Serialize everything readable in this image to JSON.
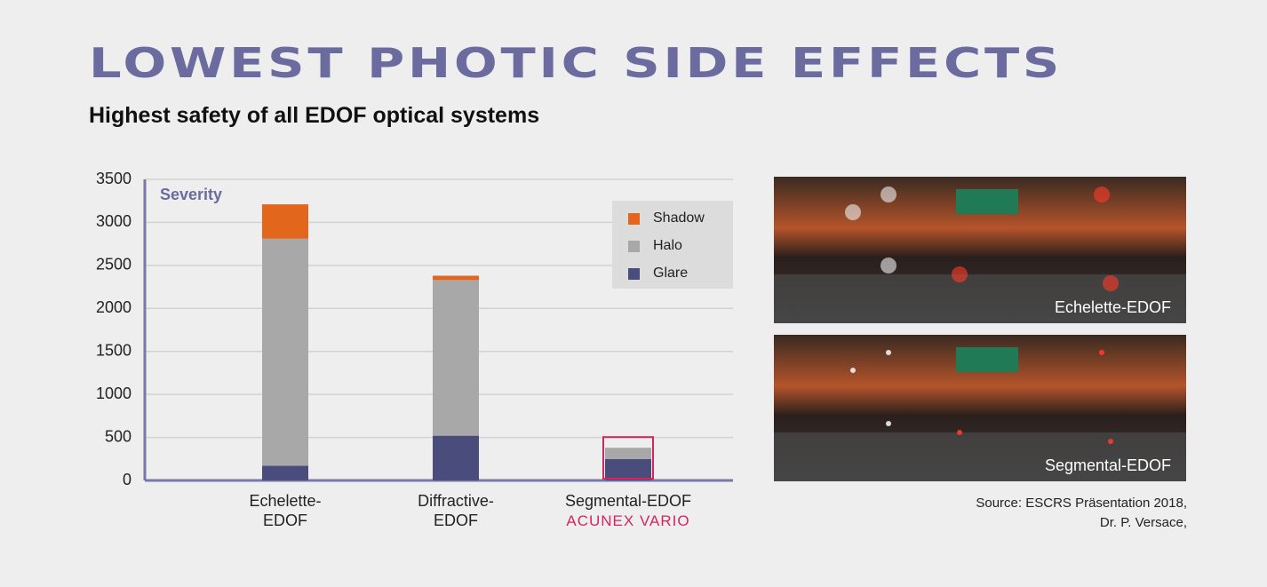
{
  "chart_data": {
    "type": "stacked_bar",
    "title": "LOWEST PHOTIC SIDE EFFECTS",
    "subtitle": "Highest safety of all EDOF optical systems",
    "ylabel": "Severity",
    "categories": [
      "Echelette-\nEDOF",
      "Diffractive-\nEDOF",
      "Segmental-EDOF"
    ],
    "category_note": {
      "text": "ACUNEX VARIO",
      "category": "Segmental-EDOF",
      "color": "#d6245f"
    },
    "series": [
      {
        "name": "Glare",
        "color": "#4a4c7c",
        "values": [
          170,
          520,
          250
        ]
      },
      {
        "name": "Halo",
        "color": "#a8a8a8",
        "values": [
          2640,
          1810,
          130
        ]
      },
      {
        "name": "Shadow",
        "color": "#e2671d",
        "values": [
          400,
          50,
          0
        ]
      }
    ],
    "ylim": [
      0,
      3500
    ],
    "yticks": [
      0,
      500,
      1000,
      1500,
      2000,
      2500,
      3000,
      3500
    ],
    "grid": true,
    "legend": "upper right",
    "photos": [
      "Echelette-EDOF",
      "Segmental-EDOF"
    ],
    "source": [
      "Source: ESCRS Präsentation 2018,",
      "Dr. P. Versace,"
    ]
  }
}
